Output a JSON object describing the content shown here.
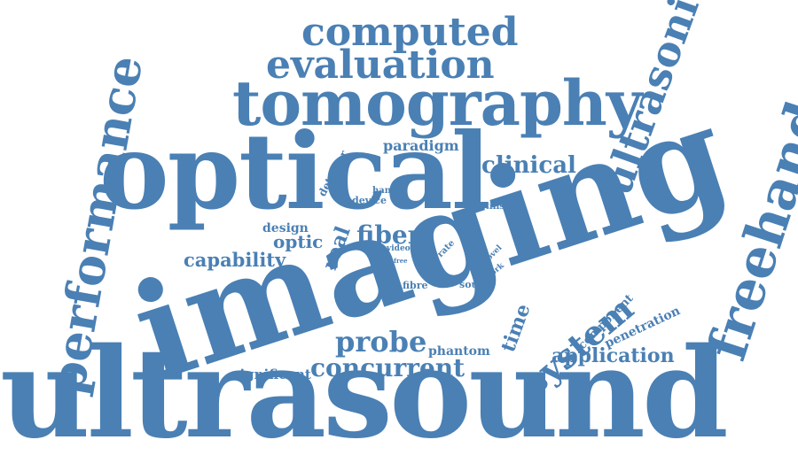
{
  "color": "#4a80b4",
  "words": {
    "ultrasound": "ultrasound",
    "imaging": "imaging",
    "optical": "optical",
    "tomography": "tomography",
    "evaluation": "evaluation",
    "computed": "computed",
    "ultrasonic": "ultrasonic",
    "freehand": "freehand",
    "performance": "performance",
    "system": "system",
    "probe": "probe",
    "concurrent": "concurrent",
    "application": "application",
    "clinical": "clinical",
    "fiber": "fiber",
    "capability": "capability",
    "paradigm": "paradigm",
    "real": "real",
    "time": "time",
    "optic": "optic",
    "design": "design",
    "phantom": "phantom",
    "significant": "significant",
    "penetration": "penetration",
    "component": "component",
    "detector": "detector",
    "hand": "hand",
    "device": "device",
    "utilise": "utilise",
    "video": "video",
    "rate": "rate",
    "novel": "novel",
    "work": "work",
    "free": "free",
    "fibre": "fibre",
    "source": "source"
  }
}
